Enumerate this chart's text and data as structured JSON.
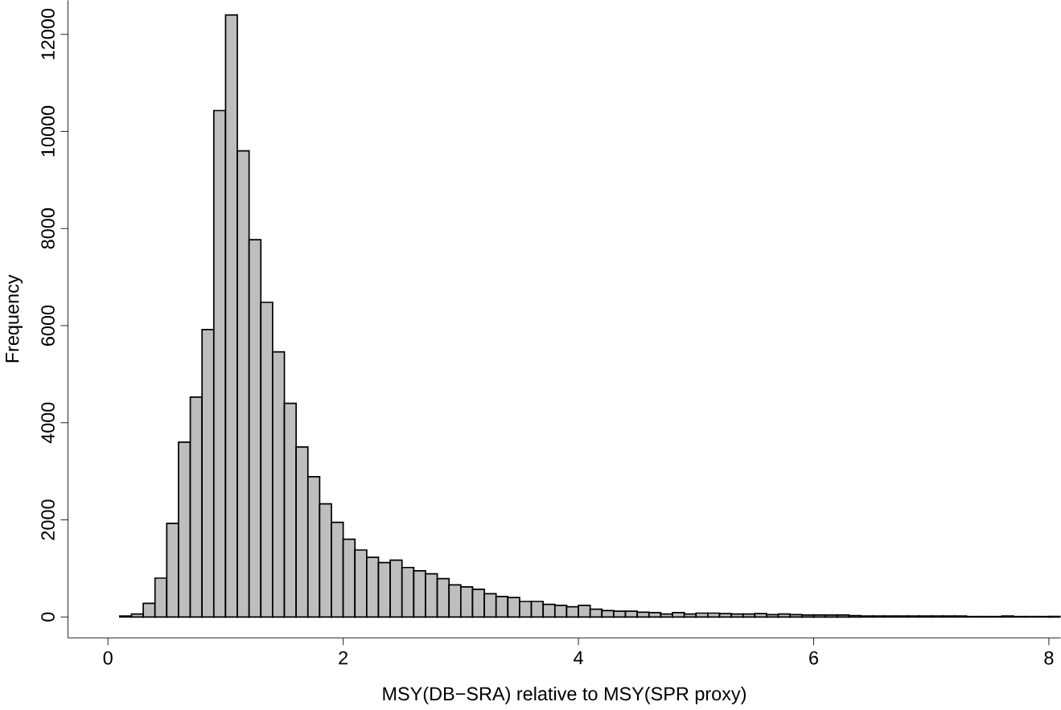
{
  "chart_data": {
    "type": "histogram",
    "xlabel": "MSY(DB−SRA) relative to MSY(SPR proxy)",
    "ylabel": "Frequency",
    "color": "#bebebe",
    "bins": [
      0.1,
      0.2,
      0.3,
      0.4,
      0.5,
      0.6,
      0.7,
      0.8,
      0.9,
      1.0,
      1.1,
      1.2,
      1.3,
      1.4,
      1.5,
      1.6,
      1.7,
      1.8,
      1.9,
      2.0,
      2.1,
      2.2,
      2.3,
      2.4,
      2.5,
      2.6,
      2.7,
      2.8,
      2.9,
      3.0,
      3.1,
      3.2,
      3.3,
      3.4,
      3.5,
      3.6,
      3.7,
      3.8,
      3.9,
      4.0,
      4.1,
      4.2,
      4.3,
      4.4,
      4.5,
      4.6,
      4.7,
      4.8,
      4.9,
      5.0,
      5.1,
      5.2,
      5.3,
      5.4,
      5.5,
      5.6,
      5.7,
      5.8,
      5.9,
      6.0,
      6.1,
      6.2,
      6.3,
      6.4,
      6.5,
      6.6,
      6.7,
      6.8,
      6.9,
      7.0,
      7.1,
      7.2,
      7.3,
      7.4,
      7.5,
      7.6,
      7.7,
      7.8,
      7.9,
      8.0,
      8.1
    ],
    "values": [
      20,
      60,
      280,
      800,
      1930,
      3600,
      4530,
      5920,
      10430,
      12400,
      9600,
      7770,
      6480,
      5460,
      4400,
      3500,
      2890,
      2330,
      1950,
      1600,
      1380,
      1230,
      1120,
      1170,
      1020,
      950,
      890,
      790,
      660,
      620,
      570,
      480,
      420,
      400,
      320,
      320,
      260,
      240,
      210,
      240,
      160,
      130,
      120,
      120,
      100,
      90,
      60,
      90,
      60,
      80,
      80,
      70,
      60,
      60,
      70,
      50,
      60,
      50,
      40,
      40,
      40,
      40,
      30,
      20,
      20,
      20,
      20,
      20,
      20,
      20,
      20,
      20,
      10,
      10,
      10,
      20,
      10,
      10,
      10,
      10
    ],
    "xlim": [
      -0.34,
      8.1
    ],
    "ylim": [
      -430,
      12700
    ],
    "xticks": [
      0,
      2,
      4,
      6,
      8
    ],
    "yticks": [
      0,
      2000,
      4000,
      6000,
      8000,
      10000,
      12000
    ],
    "grid": false
  }
}
